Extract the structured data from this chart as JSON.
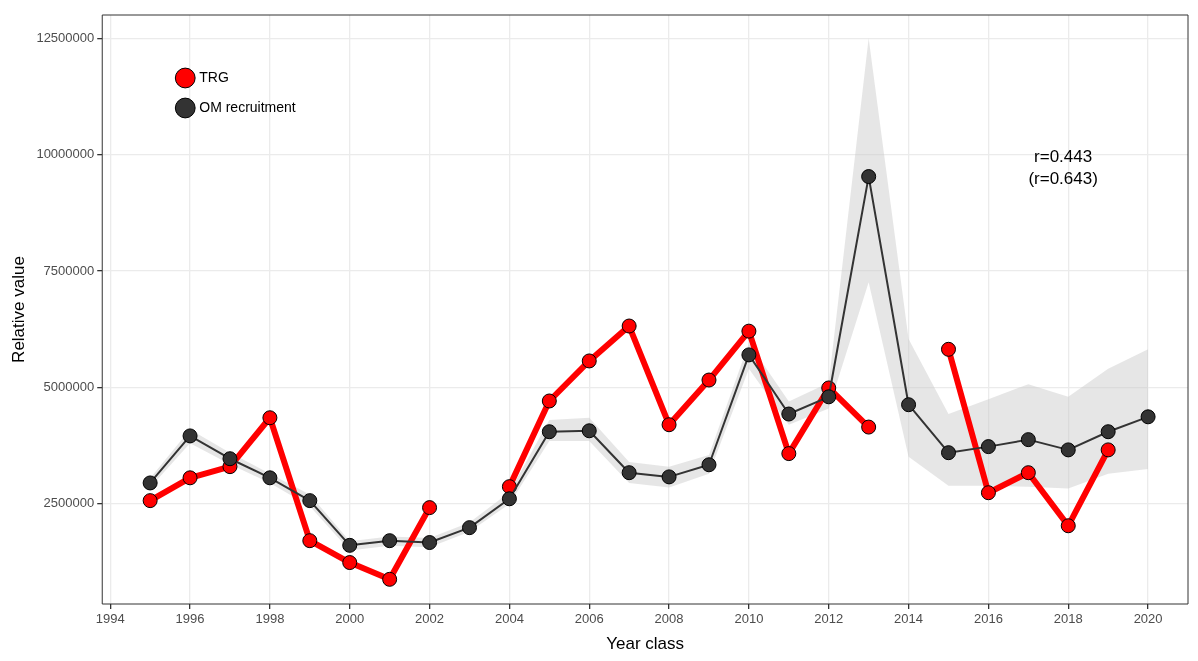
{
  "chart_data": {
    "type": "line",
    "xlabel": "Year class",
    "ylabel": "Relative value",
    "x": [
      1995,
      1996,
      1997,
      1998,
      1999,
      2000,
      2001,
      2002,
      2003,
      2004,
      2005,
      2006,
      2007,
      2008,
      2009,
      2010,
      2011,
      2012,
      2013,
      2014,
      2015,
      2016,
      2017,
      2018,
      2019,
      2020
    ],
    "series": [
      {
        "name": "TRG",
        "color": "#ff0000",
        "values": [
          2570000,
          3060000,
          3300000,
          4350000,
          1710000,
          1240000,
          880000,
          2420000,
          null,
          2870000,
          4710000,
          5570000,
          6320000,
          4200000,
          5160000,
          6210000,
          3580000,
          4990000,
          4150000,
          null,
          5820000,
          2740000,
          3170000,
          2030000,
          3660000,
          null
        ]
      },
      {
        "name": "OM recruitment",
        "color": "#333333",
        "values": [
          2950000,
          3960000,
          3470000,
          3060000,
          2570000,
          1610000,
          1710000,
          1670000,
          1990000,
          2610000,
          4050000,
          4070000,
          3170000,
          3080000,
          3340000,
          5700000,
          4430000,
          4800000,
          9530000,
          4630000,
          3600000,
          3730000,
          3880000,
          3660000,
          4050000,
          4370000
        ],
        "lower": [
          2850000,
          3800000,
          3350000,
          2950000,
          2450000,
          1500000,
          1600000,
          1570000,
          1900000,
          2500000,
          3850000,
          3850000,
          2950000,
          2850000,
          3150000,
          5400000,
          4200000,
          4550000,
          7260000,
          3510000,
          2890000,
          2890000,
          2870000,
          2830000,
          3150000,
          3250000
        ],
        "upper": [
          3050000,
          4100000,
          3600000,
          3150000,
          2700000,
          1700000,
          1800000,
          1770000,
          2100000,
          2750000,
          4300000,
          4350000,
          3400000,
          3300000,
          3550000,
          5950000,
          4700000,
          5100000,
          12500000,
          6040000,
          4430000,
          4750000,
          5070000,
          4800000,
          5400000,
          5820000
        ]
      }
    ],
    "xlim": [
      1993.8,
      2021
    ],
    "xticks": [
      1994,
      1996,
      1998,
      2000,
      2002,
      2004,
      2006,
      2008,
      2010,
      2012,
      2014,
      2016,
      2018,
      2020
    ],
    "ylim": [
      350000,
      13000000
    ],
    "yticks": [
      2500000,
      5000000,
      7500000,
      10000000,
      12500000
    ],
    "annotations": [
      "r=0.443",
      "(r=0.643)"
    ],
    "grid": true,
    "legend": "top left",
    "marker": "circle",
    "line_style": "solid"
  }
}
